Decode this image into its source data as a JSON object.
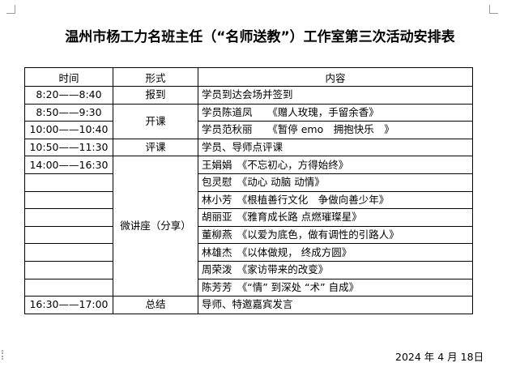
{
  "title": "温州市杨工力名班主任（“名师送教”）工作室第三次活动安排表",
  "headers": [
    "时间",
    "形式",
    "内容"
  ],
  "rows": [
    {
      "time": "8:20——8:40",
      "form": "报到",
      "content": "学员到达会场并签到"
    },
    {
      "time": "8:50——9:30",
      "form": "开课",
      "content": "学员陈道凤　　《赠人玫瑰，手留余香》"
    },
    {
      "time": "10:00——10:40",
      "form": "",
      "content": "学员范秋丽　　《暂停 emo　拥抱快乐　》"
    },
    {
      "time": "10:50——11:30",
      "form": "评课",
      "content": "学员、导师点评课"
    },
    {
      "time": "14:00——16:30",
      "form": "微讲座（分享）",
      "content": "王娟娟　《不忘初心，方得始终》"
    },
    {
      "time": "",
      "form": "",
      "content": "包灵慰　《动心 动脑 动情》"
    },
    {
      "time": "",
      "form": "",
      "content": "林小芳　《根植善行文化　争做向善少年》"
    },
    {
      "time": "",
      "form": "",
      "content": "胡丽亚　《雅育成长路 点燃璀璨星》"
    },
    {
      "time": "",
      "form": "",
      "content": "董柳燕　《以爱为底色，做有调性的引路人》"
    },
    {
      "time": "",
      "form": "",
      "content": "林雄杰　《以体做规， 终成方圆》"
    },
    {
      "time": "",
      "form": "",
      "content": "周荣泼　《家访带来的改变》"
    },
    {
      "time": "",
      "form": "",
      "content": "陈芳芳　《“情” 到深处 “术” 自成》"
    },
    {
      "time": "16:30——17:00",
      "form": "总结",
      "content": "导师、特邀嘉宾发言"
    }
  ],
  "date": "2024 年 4 月 18日"
}
